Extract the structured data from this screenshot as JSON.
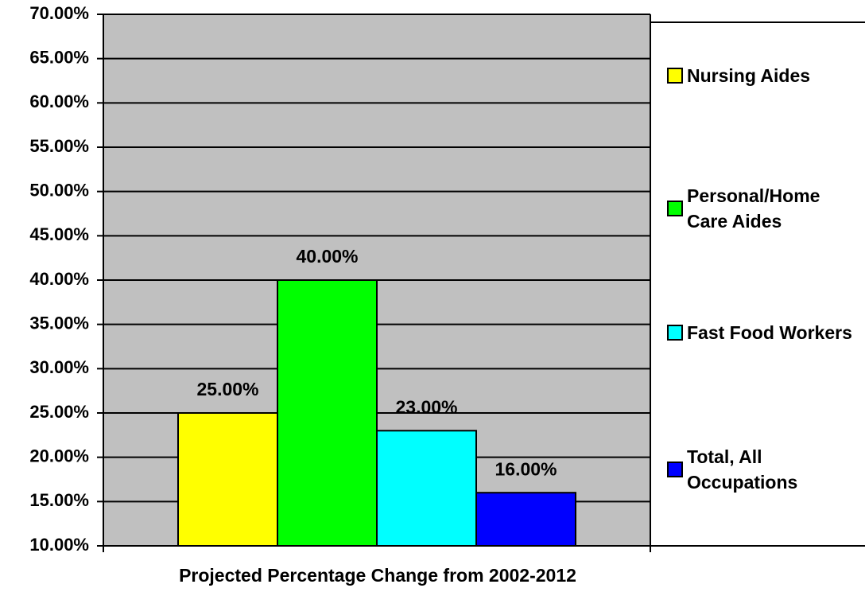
{
  "chart_data": {
    "type": "bar",
    "xlabel": "Projected Percentage Change from 2002-2012",
    "series": [
      {
        "name": "Nursing Aides",
        "color": "#ffff00",
        "values": [
          25
        ],
        "value_labels": [
          "25.00%"
        ]
      },
      {
        "name": "Personal/Home Care Aides",
        "color": "#00ff00",
        "values": [
          40
        ],
        "value_labels": [
          "40.00%"
        ]
      },
      {
        "name": "Fast Food Workers",
        "color": "#00ffff",
        "values": [
          23
        ],
        "value_labels": [
          "23.00%"
        ]
      },
      {
        "name": "Total, All Occupations",
        "color": "#0000ff",
        "values": [
          16
        ],
        "value_labels": [
          "16.00%"
        ]
      }
    ],
    "ylim": [
      10,
      70
    ],
    "yticks": [
      {
        "value": 10,
        "label": "10.00%"
      },
      {
        "value": 15,
        "label": "15.00%"
      },
      {
        "value": 20,
        "label": "20.00%"
      },
      {
        "value": 25,
        "label": "25.00%"
      },
      {
        "value": 30,
        "label": "30.00%"
      },
      {
        "value": 35,
        "label": "35.00%"
      },
      {
        "value": 40,
        "label": "40.00%"
      },
      {
        "value": 45,
        "label": "45.00%"
      },
      {
        "value": 50,
        "label": "50.00%"
      },
      {
        "value": 55,
        "label": "55.00%"
      },
      {
        "value": 60,
        "label": "60.00%"
      },
      {
        "value": 65,
        "label": "65.00%"
      },
      {
        "value": 70,
        "label": "70.00%"
      }
    ],
    "grid": true,
    "legend": "right"
  }
}
